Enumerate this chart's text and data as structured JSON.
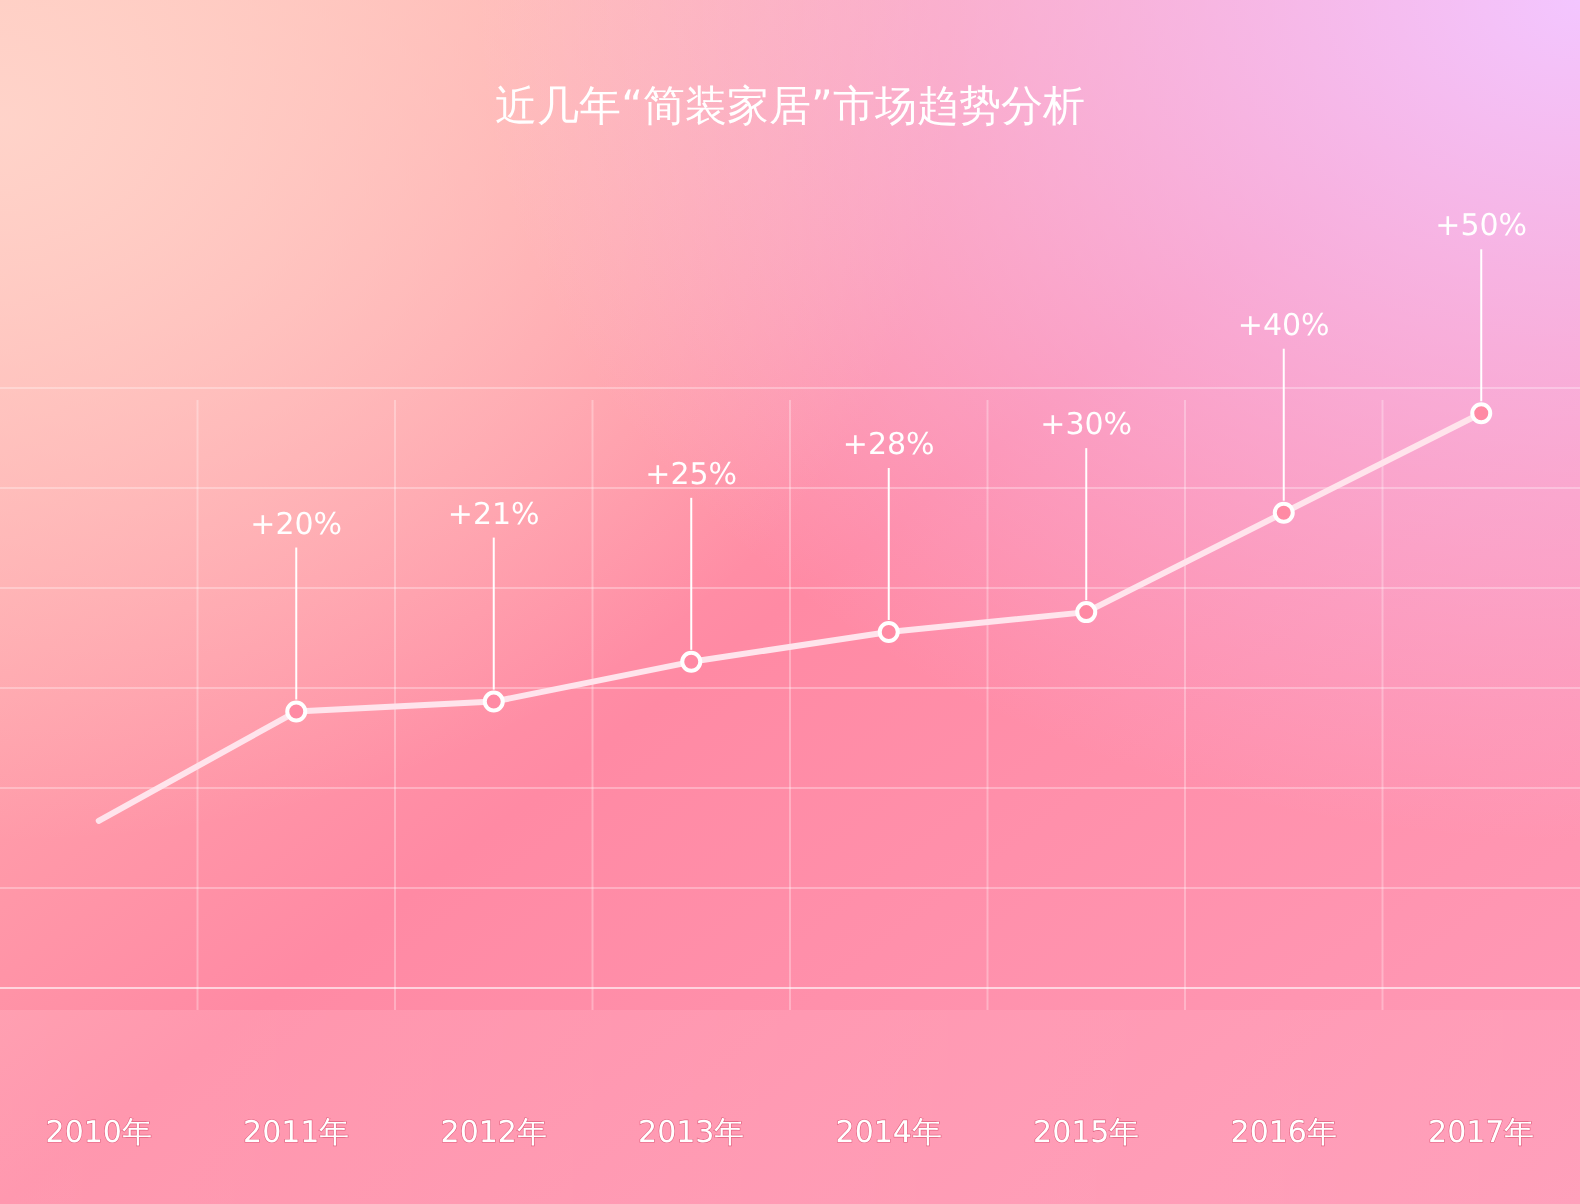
{
  "chart_data": {
    "type": "line",
    "title": "近几年“简装家居”市场趋势分析",
    "grid": true,
    "marker": "circle",
    "categories": [
      "2010年",
      "2011年",
      "2012年",
      "2013年",
      "2014年",
      "2015年",
      "2016年",
      "2017年"
    ],
    "series": [
      {
        "color": "#ffe4ec",
        "values": [
          9,
          20,
          21,
          25,
          28,
          30,
          40,
          50
        ],
        "value_labels": [
          null,
          "+20%",
          "+21%",
          "+25%",
          "+28%",
          "+30%",
          "+40%",
          "+50%"
        ]
      }
    ]
  }
}
